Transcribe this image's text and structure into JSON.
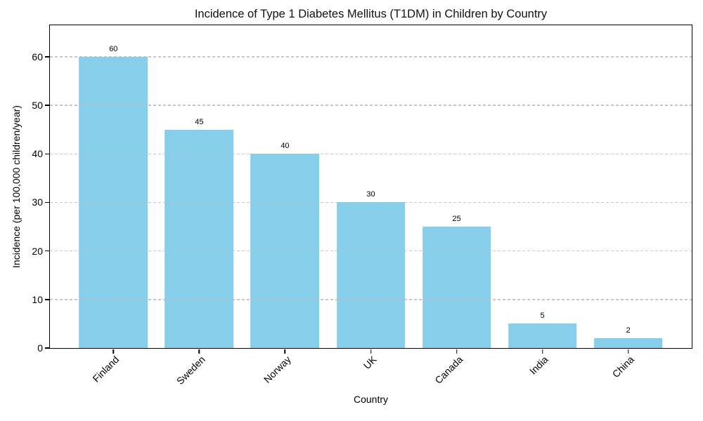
{
  "chart_data": {
    "type": "bar",
    "title": "Incidence of Type 1 Diabetes Mellitus (T1DM) in Children by Country",
    "xlabel": "Country",
    "ylabel": "Incidence (per 100,000 children/year)",
    "categories": [
      "Finland",
      "Sweden",
      "Norway",
      "UK",
      "Canada",
      "India",
      "China"
    ],
    "values": [
      60,
      45,
      40,
      30,
      25,
      5,
      2
    ],
    "bar_labels": [
      "60",
      "45",
      "40",
      "30",
      "25",
      "5",
      "2"
    ],
    "yticks": [
      0,
      10,
      20,
      30,
      40,
      50,
      60
    ],
    "ylim": [
      0,
      66.5
    ],
    "xlim": [
      -0.74,
      6.74
    ],
    "bar_width_units": 0.8,
    "grid": "horizontal-dashed-over-bars",
    "legend": "none",
    "colors": {
      "bar": "#87CEEB",
      "grid": "#bdbdbd",
      "text": "#000000",
      "spine": "#000000",
      "background": "#ffffff"
    }
  }
}
